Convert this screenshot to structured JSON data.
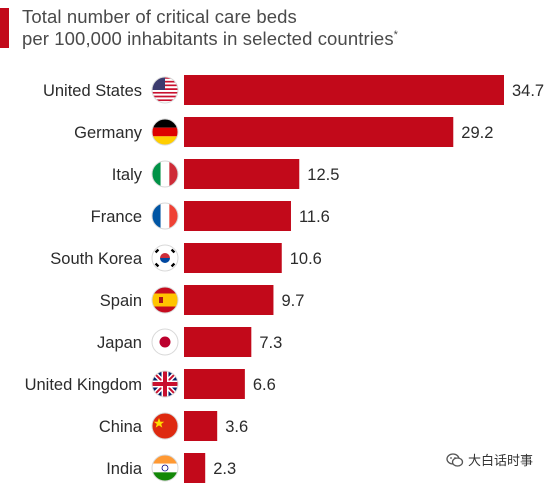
{
  "title": {
    "line1": "Total number of critical care beds",
    "line2": "per 100,000 inhabitants in selected countries",
    "footnote_mark": "*"
  },
  "watermark": {
    "text": "大白话时事",
    "icon": "wechat-icon"
  },
  "colors": {
    "bar": "#c2091a",
    "accent": "#c2091a",
    "label": "#2b2b2b",
    "title": "#4a4a4a"
  },
  "chart_data": {
    "type": "bar",
    "orientation": "horizontal",
    "title": "Total number of critical care beds per 100,000 inhabitants in selected countries*",
    "xlabel": "",
    "ylabel": "",
    "grid": false,
    "xlim": [
      0,
      34.7
    ],
    "categories": [
      "United States",
      "Germany",
      "Italy",
      "France",
      "South Korea",
      "Spain",
      "Japan",
      "United Kingdom",
      "China",
      "India"
    ],
    "flags": [
      "flag-us-icon",
      "flag-de-icon",
      "flag-it-icon",
      "flag-fr-icon",
      "flag-kr-icon",
      "flag-es-icon",
      "flag-jp-icon",
      "flag-gb-icon",
      "flag-cn-icon",
      "flag-in-icon"
    ],
    "values": [
      34.7,
      29.2,
      12.5,
      11.6,
      10.6,
      9.7,
      7.3,
      6.6,
      3.6,
      2.3
    ],
    "value_labels": [
      "34.7",
      "29.2",
      "12.5",
      "11.6",
      "10.6",
      "9.7",
      "7.3",
      "6.6",
      "3.6",
      "2.3"
    ]
  }
}
